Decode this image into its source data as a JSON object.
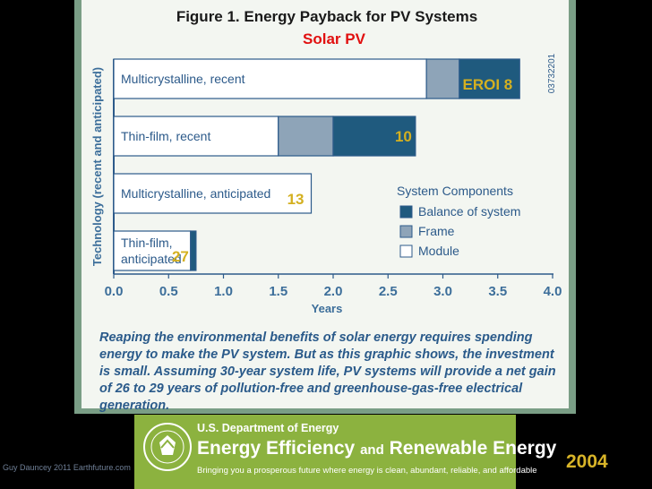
{
  "chart_data": {
    "type": "bar",
    "stacked": true,
    "orientation": "horizontal",
    "title": "Figure 1. Energy Payback for PV Systems",
    "overlay_title": "Solar PV",
    "figure_id": "03732201",
    "xlabel": "Years",
    "ylabel": "Technology (recent and anticipated)",
    "xlim": [
      0,
      4.0
    ],
    "xticks": [
      "0.0",
      "0.5",
      "1.0",
      "1.5",
      "2.0",
      "2.5",
      "3.0",
      "3.5",
      "4.0"
    ],
    "categories": [
      "Multicrystalline, recent",
      "Thin-film, recent",
      "Multicrystalline, anticipated",
      "Thin-film, anticipated"
    ],
    "series": [
      {
        "name": "Module",
        "color": "#ffffff",
        "values": [
          2.85,
          1.5,
          1.8,
          0.7
        ]
      },
      {
        "name": "Frame",
        "color": "#8ea4b8",
        "values": [
          0.3,
          0.5,
          0.0,
          0.0
        ]
      },
      {
        "name": "Balance of system",
        "color": "#1f5a7e",
        "values": [
          0.55,
          0.75,
          0.0,
          0.05
        ]
      }
    ],
    "eroi_labels": [
      "EROI 8",
      "10",
      "13",
      "27"
    ],
    "legend": {
      "title": "System Components",
      "position": "right",
      "entries": [
        "Balance of system",
        "Frame",
        "Module"
      ]
    }
  },
  "caption": "Reaping the environmental benefits of solar energy requires spending energy to make the PV system. But as this graphic shows, the investment is small. Assuming 30-year system life, PV systems will provide a net gain of 26 to 29 years of pollution-free and greenhouse-gas-free electrical generation.",
  "banner": {
    "department": "U.S. Department of Energy",
    "program_part1": "Energy Efficiency",
    "program_and": "and",
    "program_part2": "Renewable Energy",
    "tagline": "Bringing you a prosperous future where energy is clean, abundant, reliable, and affordable"
  },
  "credit": "Guy Dauncey 2011 Earthfuture.com",
  "year": "2004",
  "colors": {
    "panel": "#7a9e86",
    "module": "#ffffff",
    "frame": "#8ea4b8",
    "bos": "#1f5a7e",
    "eroi": "#d4b020",
    "overlay": "#e11010",
    "year": "#d8b428",
    "banner": "#8cb23f"
  }
}
